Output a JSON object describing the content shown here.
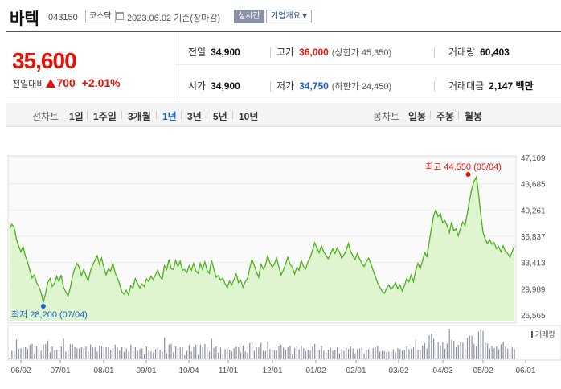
{
  "header": {
    "title": "바텍",
    "code": "043150",
    "market": "코스닥",
    "date_text": "2023.06.02 기준(장마감)",
    "realtime_label": "실시간",
    "company_label": "기업개요 ▾"
  },
  "quote": {
    "price": "35,600",
    "change_label": "전일대비",
    "change": "700",
    "change_pct": "+2.01%",
    "prev_label": "전일",
    "prev": "34,900",
    "open_label": "시가",
    "open": "34,900",
    "high_label": "고가",
    "high": "36,000",
    "upper_limit": "(상한가 45,350)",
    "low_label": "저가",
    "low": "34,750",
    "lower_limit": "(하한가 24,450)",
    "volume_label": "거래량",
    "volume": "60,403",
    "amount_label": "거래대금",
    "amount": "2,147 백만"
  },
  "period": {
    "line_label": "선차트",
    "line_items": [
      "1일",
      "1주일",
      "3개월",
      "1년",
      "3년",
      "5년",
      "10년"
    ],
    "active": "1년",
    "candle_label": "봉차트",
    "candle_items": [
      "일봉",
      "주봉",
      "월봉"
    ]
  },
  "colors": {
    "up": "#e5120a",
    "down": "#1a5fc8",
    "line": "#4caf1e",
    "fill": "#dff5cf"
  },
  "chart_data": {
    "type": "area",
    "y_ticks": [
      "47,109",
      "43,685",
      "40,261",
      "36,837",
      "33,413",
      "29,989",
      "26,565"
    ],
    "ylim": [
      26565,
      47109
    ],
    "x_ticks": [
      "06/02",
      "07/01",
      "08/01",
      "09/01",
      "10/04",
      "11/01",
      "12/01",
      "01/02",
      "02/01",
      "03/02",
      "04/03",
      "05/02",
      "06/01"
    ],
    "max_label": "최고 44,550 (05/04)",
    "min_label": "최저 28,200 (07/04)",
    "volume_label": "거래량",
    "values": [
      37800,
      38400,
      38000,
      36500,
      35600,
      34800,
      35500,
      34300,
      33500,
      32400,
      31400,
      31800,
      30800,
      30300,
      29500,
      28200,
      29400,
      30800,
      31300,
      30300,
      30700,
      31600,
      30900,
      31800,
      30200,
      29600,
      29000,
      30100,
      31600,
      32600,
      33300,
      32800,
      31700,
      32500,
      31700,
      31000,
      32300,
      33100,
      33700,
      34300,
      33200,
      34000,
      32800,
      31800,
      32600,
      32300,
      33300,
      32100,
      31400,
      30600,
      29600,
      29300,
      29800,
      29200,
      30400,
      30100,
      31300,
      30700,
      30100,
      30600,
      30300,
      31300,
      30900,
      31600,
      31200,
      31800,
      32400,
      31600,
      31200,
      33000,
      32500,
      33800,
      32600,
      32500,
      33700,
      32900,
      33600,
      32400,
      32500,
      32100,
      33000,
      32400,
      33300,
      32300,
      32000,
      33300,
      32500,
      33500,
      32400,
      32000,
      33700,
      32600,
      31500,
      31700,
      31100,
      31400,
      30700,
      30100,
      31000,
      30500,
      31200,
      31900,
      30800,
      31100,
      30200,
      30900,
      31300,
      32600,
      33800,
      33100,
      32200,
      31500,
      33200,
      32600,
      33000,
      34300,
      33400,
      32800,
      33200,
      34000,
      32900,
      31800,
      32400,
      33200,
      34100,
      33200,
      32800,
      31900,
      32800,
      32400,
      33700,
      32900,
      32600,
      33500,
      34100,
      35000,
      36000,
      35300,
      34700,
      35600,
      34800,
      34400,
      33900,
      34500,
      35200,
      34600,
      35300,
      34800,
      34000,
      34400,
      35000,
      35900,
      34900,
      34300,
      33800,
      34600,
      33900,
      33300,
      32900,
      33500,
      34000,
      33300,
      32400,
      31600,
      30800,
      30200,
      29700,
      29400,
      30000,
      30500,
      29900,
      30300,
      30800,
      30000,
      30500,
      29700,
      30400,
      31300,
      30900,
      31800,
      30900,
      32400,
      33300,
      32600,
      33600,
      34700,
      34200,
      36000,
      37800,
      39500,
      40300,
      39400,
      39800,
      38600,
      38900,
      38200,
      37300,
      38700,
      37600,
      37800,
      36900,
      37900,
      38700,
      38200,
      39800,
      41500,
      43000,
      44000,
      44550,
      42500,
      39800,
      37400,
      36500,
      35900,
      36400,
      35800,
      36000,
      35200,
      35500,
      34800,
      35600,
      34900,
      34600,
      34100,
      34800,
      35600
    ]
  }
}
